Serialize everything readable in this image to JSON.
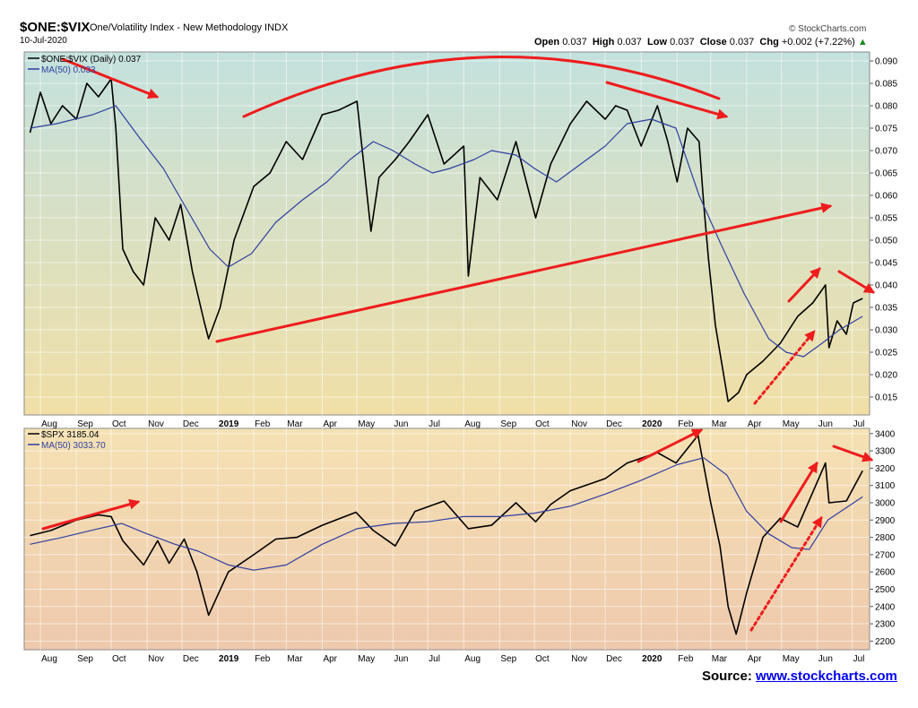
{
  "header": {
    "symbol": "$ONE:$VIX",
    "description": "One/Volatility Index - New Methodology  INDX",
    "date": "10-Jul-2020",
    "brand": "© StockCharts.com",
    "open_label": "Open",
    "open": "0.037",
    "high_label": "High",
    "high": "0.037",
    "low_label": "Low",
    "low": "0.037",
    "close_label": "Close",
    "close": "0.037",
    "chg_label": "Chg",
    "chg": "+0.002 (+7.22%)",
    "chg_arrow": "▲"
  },
  "source": {
    "label": "Source:",
    "link": "www.stockcharts.com"
  },
  "colors": {
    "price": "#000000",
    "ma": "#2f3fa0",
    "annotation": "#ee1c1c",
    "top_bg_top": "#c3e1de",
    "top_bg_bottom": "#f1dfa6",
    "bottom_bg_top": "#f5e1b3",
    "bottom_bg_bottom": "#eec9ad"
  },
  "x_axis_labels": [
    "Aug",
    "Sep",
    "Oct",
    "Nov",
    "Dec",
    "2019",
    "Feb",
    "Mar",
    "Apr",
    "May",
    "Jun",
    "Jul",
    "Aug",
    "Sep",
    "Oct",
    "Nov",
    "Dec",
    "2020",
    "Feb",
    "Mar",
    "Apr",
    "May",
    "Jun",
    "Jul"
  ],
  "chart_data": [
    {
      "type": "line",
      "panel": "top",
      "ylim": [
        0.011,
        0.092
      ],
      "yticks": [
        "0.090",
        "0.085",
        "0.080",
        "0.075",
        "0.070",
        "0.065",
        "0.060",
        "0.055",
        "0.050",
        "0.045",
        "0.040",
        "0.035",
        "0.030",
        "0.025",
        "0.020",
        "0.015"
      ],
      "legend_position": "top-left",
      "series": [
        {
          "name": "$ONE:$VIX (Daily) 0.037",
          "x": [
            "2018-07-23",
            "2018-08-01",
            "2018-08-10",
            "2018-08-20",
            "2018-09-01",
            "2018-09-10",
            "2018-09-20",
            "2018-10-01",
            "2018-10-05",
            "2018-10-11",
            "2018-10-20",
            "2018-10-29",
            "2018-11-08",
            "2018-11-20",
            "2018-11-30",
            "2018-12-10",
            "2018-12-20",
            "2018-12-24",
            "2019-01-03",
            "2019-01-15",
            "2019-02-01",
            "2019-02-15",
            "2019-03-01",
            "2019-03-15",
            "2019-04-01",
            "2019-04-15",
            "2019-05-01",
            "2019-05-13",
            "2019-05-20",
            "2019-06-03",
            "2019-06-15",
            "2019-07-01",
            "2019-07-15",
            "2019-08-01",
            "2019-08-05",
            "2019-08-15",
            "2019-08-30",
            "2019-09-15",
            "2019-10-02",
            "2019-10-15",
            "2019-11-01",
            "2019-11-15",
            "2019-12-01",
            "2019-12-10",
            "2019-12-20",
            "2020-01-01",
            "2020-01-15",
            "2020-01-24",
            "2020-02-01",
            "2020-02-10",
            "2020-02-20",
            "2020-02-24",
            "2020-02-28",
            "2020-03-05",
            "2020-03-16",
            "2020-03-25",
            "2020-04-01",
            "2020-04-15",
            "2020-04-30",
            "2020-05-15",
            "2020-05-28",
            "2020-06-08",
            "2020-06-11",
            "2020-06-18",
            "2020-06-26",
            "2020-07-02",
            "2020-07-10"
          ],
          "values": [
            0.074,
            0.083,
            0.076,
            0.08,
            0.077,
            0.085,
            0.082,
            0.086,
            0.075,
            0.048,
            0.043,
            0.04,
            0.055,
            0.05,
            0.058,
            0.043,
            0.032,
            0.028,
            0.035,
            0.05,
            0.062,
            0.065,
            0.072,
            0.068,
            0.078,
            0.079,
            0.081,
            0.052,
            0.064,
            0.068,
            0.072,
            0.078,
            0.067,
            0.071,
            0.042,
            0.064,
            0.059,
            0.072,
            0.055,
            0.067,
            0.076,
            0.081,
            0.077,
            0.08,
            0.079,
            0.071,
            0.08,
            0.072,
            0.063,
            0.075,
            0.072,
            0.058,
            0.046,
            0.031,
            0.014,
            0.016,
            0.02,
            0.023,
            0.027,
            0.033,
            0.036,
            0.04,
            0.026,
            0.032,
            0.029,
            0.036,
            0.037
          ]
        },
        {
          "name": "MA(50) 0.033",
          "x": [
            "2018-07-23",
            "2018-08-15",
            "2018-09-15",
            "2018-10-05",
            "2018-10-25",
            "2018-11-15",
            "2018-12-05",
            "2018-12-25",
            "2019-01-10",
            "2019-01-30",
            "2019-02-20",
            "2019-03-15",
            "2019-04-05",
            "2019-04-25",
            "2019-05-15",
            "2019-06-01",
            "2019-06-20",
            "2019-07-05",
            "2019-07-20",
            "2019-08-10",
            "2019-08-25",
            "2019-09-15",
            "2019-10-01",
            "2019-10-20",
            "2019-11-10",
            "2019-12-01",
            "2019-12-20",
            "2020-01-10",
            "2020-01-31",
            "2020-02-20",
            "2020-03-10",
            "2020-03-30",
            "2020-04-20",
            "2020-05-05",
            "2020-05-20",
            "2020-06-05",
            "2020-06-20",
            "2020-07-10"
          ],
          "values": [
            0.075,
            0.076,
            0.078,
            0.08,
            0.073,
            0.066,
            0.057,
            0.048,
            0.044,
            0.047,
            0.054,
            0.059,
            0.063,
            0.068,
            0.072,
            0.07,
            0.067,
            0.065,
            0.066,
            0.068,
            0.07,
            0.069,
            0.066,
            0.063,
            0.067,
            0.071,
            0.076,
            0.077,
            0.075,
            0.06,
            0.049,
            0.038,
            0.028,
            0.025,
            0.024,
            0.027,
            0.03,
            0.033
          ]
        }
      ]
    },
    {
      "type": "line",
      "panel": "bottom",
      "ylim": [
        2150,
        3430
      ],
      "yticks": [
        "3400",
        "3300",
        "3200",
        "3100",
        "3000",
        "2900",
        "2800",
        "2700",
        "2600",
        "2500",
        "2400",
        "2300",
        "2200"
      ],
      "legend_position": "top-left",
      "series": [
        {
          "name": "$SPX 3185.04",
          "x": [
            "2018-07-23",
            "2018-08-10",
            "2018-09-01",
            "2018-09-20",
            "2018-10-01",
            "2018-10-11",
            "2018-10-29",
            "2018-11-10",
            "2018-11-20",
            "2018-12-03",
            "2018-12-14",
            "2018-12-24",
            "2019-01-10",
            "2019-02-01",
            "2019-02-20",
            "2019-03-10",
            "2019-04-01",
            "2019-04-30",
            "2019-05-15",
            "2019-06-03",
            "2019-06-20",
            "2019-07-15",
            "2019-08-05",
            "2019-08-25",
            "2019-09-15",
            "2019-10-02",
            "2019-10-15",
            "2019-11-01",
            "2019-12-01",
            "2019-12-20",
            "2020-01-15",
            "2020-01-31",
            "2020-02-19",
            "2020-03-01",
            "2020-03-09",
            "2020-03-16",
            "2020-03-23",
            "2020-04-01",
            "2020-04-15",
            "2020-04-30",
            "2020-05-15",
            "2020-06-08",
            "2020-06-11",
            "2020-06-26",
            "2020-07-10"
          ],
          "values": [
            2810,
            2840,
            2900,
            2930,
            2920,
            2780,
            2640,
            2780,
            2650,
            2790,
            2600,
            2350,
            2600,
            2700,
            2790,
            2800,
            2870,
            2945,
            2840,
            2750,
            2950,
            3010,
            2850,
            2870,
            3000,
            2890,
            2990,
            3070,
            3140,
            3230,
            3290,
            3230,
            3390,
            3000,
            2750,
            2400,
            2240,
            2480,
            2800,
            2910,
            2860,
            3230,
            3000,
            3010,
            3185
          ]
        },
        {
          "name": "MA(50) 3033.70",
          "x": [
            "2018-07-23",
            "2018-08-20",
            "2018-09-20",
            "2018-10-10",
            "2018-11-01",
            "2018-11-25",
            "2018-12-15",
            "2019-01-10",
            "2019-02-01",
            "2019-03-01",
            "2019-04-01",
            "2019-05-01",
            "2019-06-01",
            "2019-07-01",
            "2019-08-01",
            "2019-09-01",
            "2019-10-01",
            "2019-11-01",
            "2019-12-01",
            "2020-01-01",
            "2020-02-01",
            "2020-02-24",
            "2020-03-15",
            "2020-04-01",
            "2020-04-20",
            "2020-05-10",
            "2020-05-25",
            "2020-06-10",
            "2020-07-10"
          ],
          "values": [
            2760,
            2800,
            2850,
            2880,
            2820,
            2760,
            2720,
            2640,
            2610,
            2640,
            2760,
            2850,
            2880,
            2890,
            2920,
            2920,
            2940,
            2980,
            3050,
            3130,
            3220,
            3260,
            3160,
            2950,
            2820,
            2740,
            2730,
            2900,
            3034
          ]
        }
      ]
    }
  ]
}
